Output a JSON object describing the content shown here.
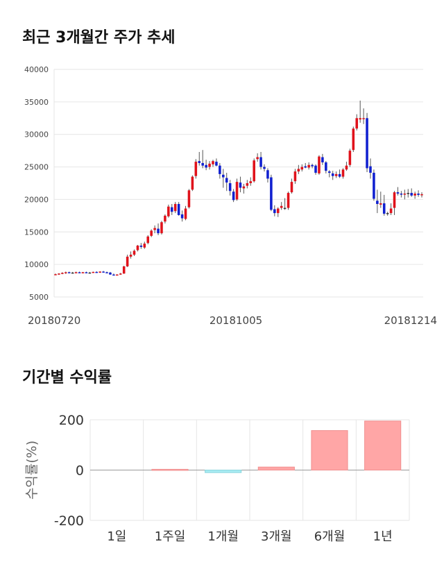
{
  "titles": {
    "price_chart": "최근 3개월간 주가 추세",
    "returns_chart": "기간별 수익률"
  },
  "chart_data": [
    {
      "type": "candlestick",
      "title": "최근 3개월간 주가 추세",
      "ylim": [
        5000,
        40000
      ],
      "y_ticks": [
        "40000",
        "35000",
        "30000",
        "25000",
        "20000",
        "15000",
        "10000",
        "5000"
      ],
      "x_tick_labels": [
        {
          "index": 0,
          "label": "20180720"
        },
        {
          "index": 53,
          "label": "20181005"
        },
        {
          "index": 107,
          "label": "20181214"
        }
      ],
      "grid": true,
      "colors": {
        "up": "#e0121b",
        "down": "#1020d0",
        "flat": "#333333",
        "wick": "#555555"
      },
      "ohlc": [
        [
          8400,
          8600,
          8350,
          8500
        ],
        [
          8500,
          8650,
          8400,
          8600
        ],
        [
          8600,
          8800,
          8500,
          8700
        ],
        [
          8700,
          8900,
          8550,
          8800
        ],
        [
          8800,
          8900,
          8650,
          8750
        ],
        [
          8750,
          8850,
          8600,
          8750
        ],
        [
          8750,
          8900,
          8650,
          8800
        ],
        [
          8800,
          8900,
          8700,
          8750
        ],
        [
          8750,
          8850,
          8650,
          8800
        ],
        [
          8800,
          8900,
          8700,
          8750
        ],
        [
          8750,
          8850,
          8650,
          8750
        ],
        [
          8750,
          8900,
          8700,
          8850
        ],
        [
          8850,
          8950,
          8750,
          8800
        ],
        [
          8800,
          8950,
          8700,
          8900
        ],
        [
          8900,
          9000,
          8750,
          8800
        ],
        [
          8800,
          8900,
          8650,
          8750
        ],
        [
          8750,
          8850,
          8400,
          8450
        ],
        [
          8450,
          8600,
          8300,
          8400
        ],
        [
          8400,
          8500,
          8300,
          8450
        ],
        [
          8450,
          8700,
          8400,
          8600
        ],
        [
          8600,
          9800,
          8550,
          9700
        ],
        [
          9700,
          11500,
          9600,
          11200
        ],
        [
          11200,
          12000,
          10900,
          11500
        ],
        [
          11500,
          12300,
          11300,
          12100
        ],
        [
          12200,
          13000,
          12000,
          12900
        ],
        [
          12900,
          13300,
          12400,
          12700
        ],
        [
          12600,
          13500,
          12400,
          13200
        ],
        [
          13300,
          14500,
          13100,
          14300
        ],
        [
          14400,
          15400,
          14200,
          15200
        ],
        [
          15300,
          16000,
          14800,
          15600
        ],
        [
          15500,
          16300,
          14500,
          14800
        ],
        [
          14800,
          16700,
          14600,
          16500
        ],
        [
          16600,
          17700,
          16300,
          17500
        ],
        [
          17400,
          19200,
          17200,
          18900
        ],
        [
          18800,
          19300,
          17600,
          18100
        ],
        [
          18200,
          19600,
          17900,
          19300
        ],
        [
          19300,
          19600,
          17500,
          17600
        ],
        [
          17700,
          18300,
          16600,
          17100
        ],
        [
          17000,
          19000,
          16800,
          18600
        ],
        [
          18800,
          21600,
          18600,
          21400
        ],
        [
          21500,
          23700,
          21300,
          23500
        ],
        [
          23600,
          26200,
          23200,
          25800
        ],
        [
          25900,
          27300,
          25200,
          25600
        ],
        [
          25600,
          27600,
          24800,
          25200
        ],
        [
          25300,
          26100,
          24500,
          24900
        ],
        [
          25000,
          25900,
          24600,
          25500
        ],
        [
          25400,
          26100,
          25000,
          25900
        ],
        [
          25800,
          26300,
          25100,
          25200
        ],
        [
          25200,
          25600,
          23200,
          23900
        ],
        [
          23800,
          24700,
          21800,
          23400
        ],
        [
          23300,
          24100,
          21300,
          22600
        ],
        [
          22500,
          23000,
          20600,
          21300
        ],
        [
          21200,
          21600,
          19600,
          19900
        ],
        [
          20000,
          23200,
          19800,
          22700
        ],
        [
          22600,
          23500,
          21100,
          21800
        ],
        [
          21700,
          22400,
          20900,
          22000
        ],
        [
          22100,
          23000,
          21700,
          22500
        ],
        [
          22500,
          23400,
          22100,
          22800
        ],
        [
          22800,
          26300,
          22600,
          26000
        ],
        [
          26200,
          27100,
          25800,
          26500
        ],
        [
          26500,
          27300,
          24600,
          25000
        ],
        [
          25000,
          25400,
          24300,
          24700
        ],
        [
          24500,
          24800,
          22600,
          23200
        ],
        [
          23400,
          23800,
          18200,
          18400
        ],
        [
          18500,
          19100,
          17400,
          17900
        ],
        [
          17900,
          18800,
          17300,
          18600
        ],
        [
          18700,
          19600,
          18400,
          19000
        ],
        [
          18700,
          20200,
          18400,
          18700
        ],
        [
          18700,
          21200,
          18400,
          21000
        ],
        [
          21100,
          23200,
          20900,
          22700
        ],
        [
          22800,
          24700,
          22400,
          24300
        ],
        [
          24300,
          25300,
          23900,
          24700
        ],
        [
          24600,
          25400,
          24300,
          25000
        ],
        [
          25100,
          25600,
          24800,
          24900
        ],
        [
          24900,
          25700,
          24600,
          25300
        ],
        [
          25300,
          25500,
          24800,
          25100
        ],
        [
          25200,
          25400,
          23800,
          24100
        ],
        [
          24000,
          26800,
          23800,
          26600
        ],
        [
          26500,
          27000,
          25300,
          25700
        ],
        [
          25700,
          25900,
          24000,
          24400
        ],
        [
          24300,
          24500,
          23400,
          24100
        ],
        [
          24000,
          24400,
          23000,
          23600
        ],
        [
          23600,
          24300,
          23300,
          23900
        ],
        [
          23900,
          24600,
          23300,
          23500
        ],
        [
          23500,
          24800,
          23200,
          24600
        ],
        [
          24600,
          25800,
          24400,
          25200
        ],
        [
          25300,
          27800,
          25000,
          27500
        ],
        [
          27600,
          31200,
          27300,
          30900
        ],
        [
          30900,
          33100,
          30600,
          32500
        ],
        [
          32300,
          35200,
          31800,
          32500
        ],
        [
          32400,
          34000,
          31600,
          32500
        ],
        [
          32500,
          33300,
          24200,
          24800
        ],
        [
          25100,
          26300,
          23200,
          24100
        ],
        [
          24100,
          24600,
          19800,
          20100
        ],
        [
          19800,
          21500,
          17900,
          19300
        ],
        [
          19200,
          21200,
          18700,
          19400
        ],
        [
          19400,
          20700,
          17500,
          17800
        ],
        [
          17900,
          18100,
          17500,
          17900
        ],
        [
          17900,
          19400,
          17600,
          18600
        ],
        [
          18700,
          21300,
          17600,
          21100
        ],
        [
          21100,
          21900,
          20600,
          20900
        ],
        [
          20900,
          21300,
          20300,
          20800
        ],
        [
          20800,
          21500,
          20000,
          20900
        ],
        [
          21000,
          21600,
          20300,
          21000
        ],
        [
          21000,
          21700,
          20400,
          20600
        ],
        [
          20600,
          21200,
          20100,
          20900
        ],
        [
          20900,
          21400,
          20400,
          20700
        ],
        [
          20700,
          21100,
          20300,
          20800
        ]
      ]
    },
    {
      "type": "bar",
      "title": "기간별 수익률",
      "categories": [
        "1일",
        "1주일",
        "1개월",
        "3개월",
        "6개월",
        "1년"
      ],
      "values": [
        0,
        3,
        -10,
        12,
        157,
        195
      ],
      "ylabel": "수익률(%)",
      "ylim": [
        -200,
        200
      ],
      "y_ticks": [
        "200",
        "0",
        "-200"
      ],
      "grid": true,
      "colors": {
        "positive": "#ffa6a6",
        "positive_edge": "#f08f8f",
        "negative": "#a8ecf2",
        "negative_edge": "#88d4dc"
      }
    }
  ]
}
